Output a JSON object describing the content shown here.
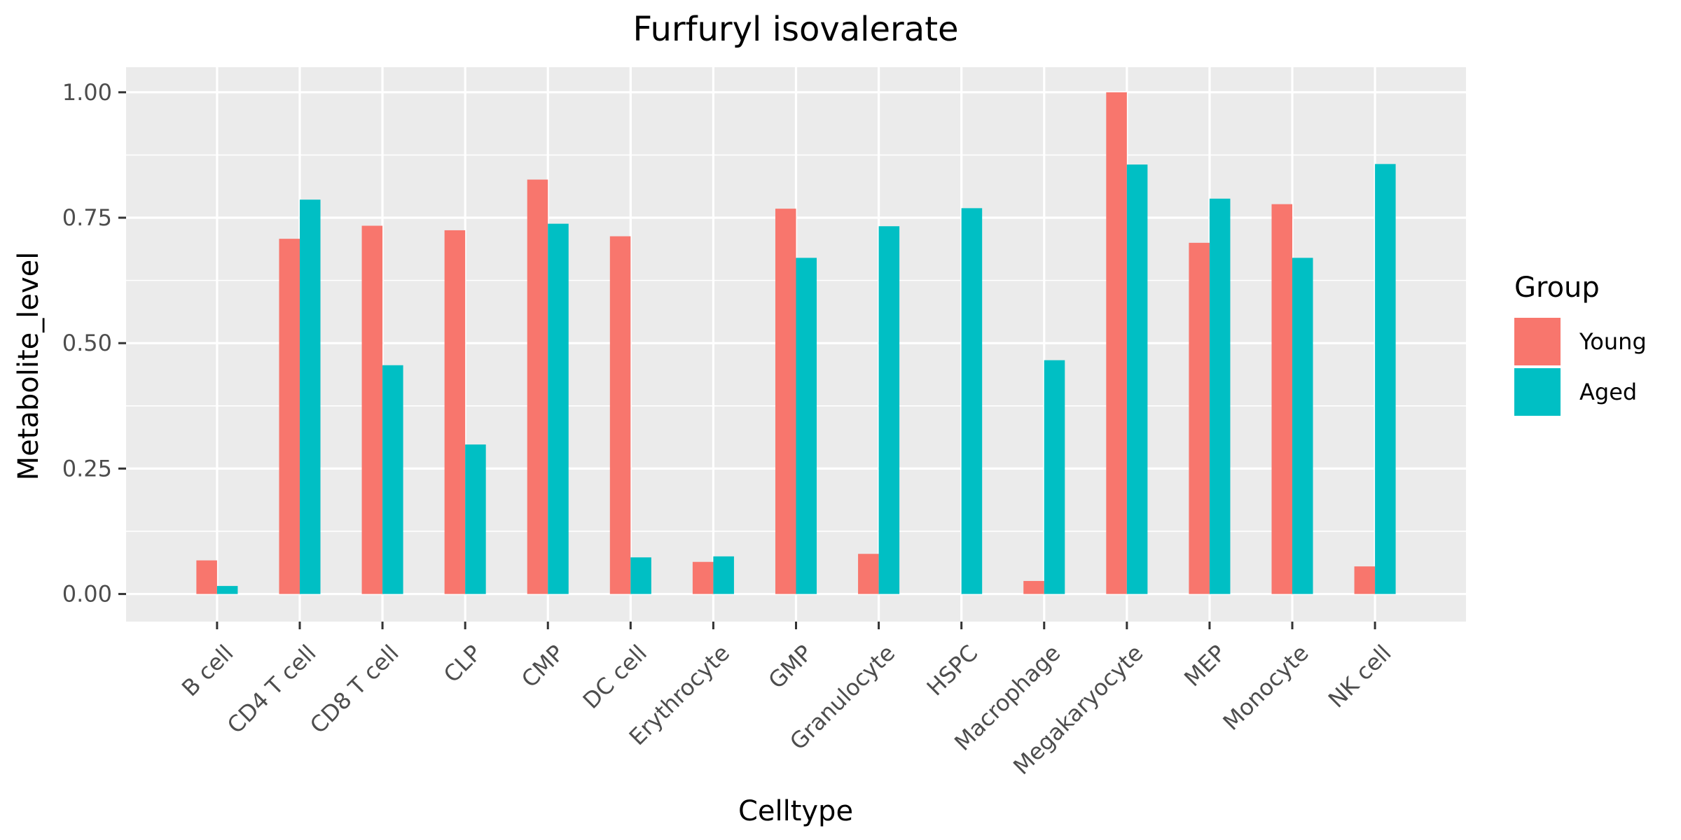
{
  "chart_data": {
    "type": "bar",
    "title": "Furfuryl isovalerate",
    "xlabel": "Celltype",
    "ylabel": "Metabolite_level",
    "categories": [
      "B cell",
      "CD4 T cell",
      "CD8 T cell",
      "CLP",
      "CMP",
      "DC cell",
      "Erythrocyte",
      "GMP",
      "Granulocyte",
      "HSPC",
      "Macrophage",
      "Megakaryocyte",
      "MEP",
      "Monocyte",
      "NK cell"
    ],
    "series": [
      {
        "name": "Young",
        "color": "#F8766D",
        "values": [
          0.067,
          0.708,
          0.734,
          0.725,
          0.826,
          0.713,
          0.064,
          0.768,
          0.08,
          0.0,
          0.026,
          1.0,
          0.7,
          0.777,
          0.055
        ]
      },
      {
        "name": "Aged",
        "color": "#00BFC4",
        "values": [
          0.016,
          0.786,
          0.456,
          0.298,
          0.738,
          0.073,
          0.075,
          0.67,
          0.733,
          0.769,
          0.466,
          0.856,
          0.788,
          0.67,
          0.857
        ]
      }
    ],
    "ylim": [
      -0.055,
      1.05
    ],
    "yticks": [
      "0.00",
      "0.25",
      "0.50",
      "0.75",
      "1.00"
    ],
    "ytick_values": [
      0,
      0.25,
      0.5,
      0.75,
      1.0
    ],
    "legend": {
      "title": "Group",
      "position": "right"
    },
    "grid": true,
    "panel_color": "#EBEBEB"
  }
}
